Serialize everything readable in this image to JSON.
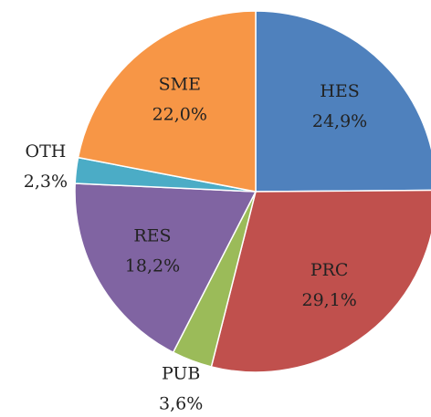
{
  "chart_data": {
    "type": "pie",
    "categories": [
      "HES",
      "PRC",
      "PUB",
      "RES",
      "OTH",
      "SME"
    ],
    "values": [
      24.9,
      29.1,
      3.6,
      18.2,
      2.3,
      22.0
    ],
    "value_labels": [
      "24,9%",
      "29,1%",
      "3,6%",
      "18,2%",
      "2,3%",
      "22,0%"
    ],
    "colors": [
      "#4F81BD",
      "#C0504D",
      "#9BBB59",
      "#8064A2",
      "#4BACC6",
      "#F79646"
    ]
  }
}
